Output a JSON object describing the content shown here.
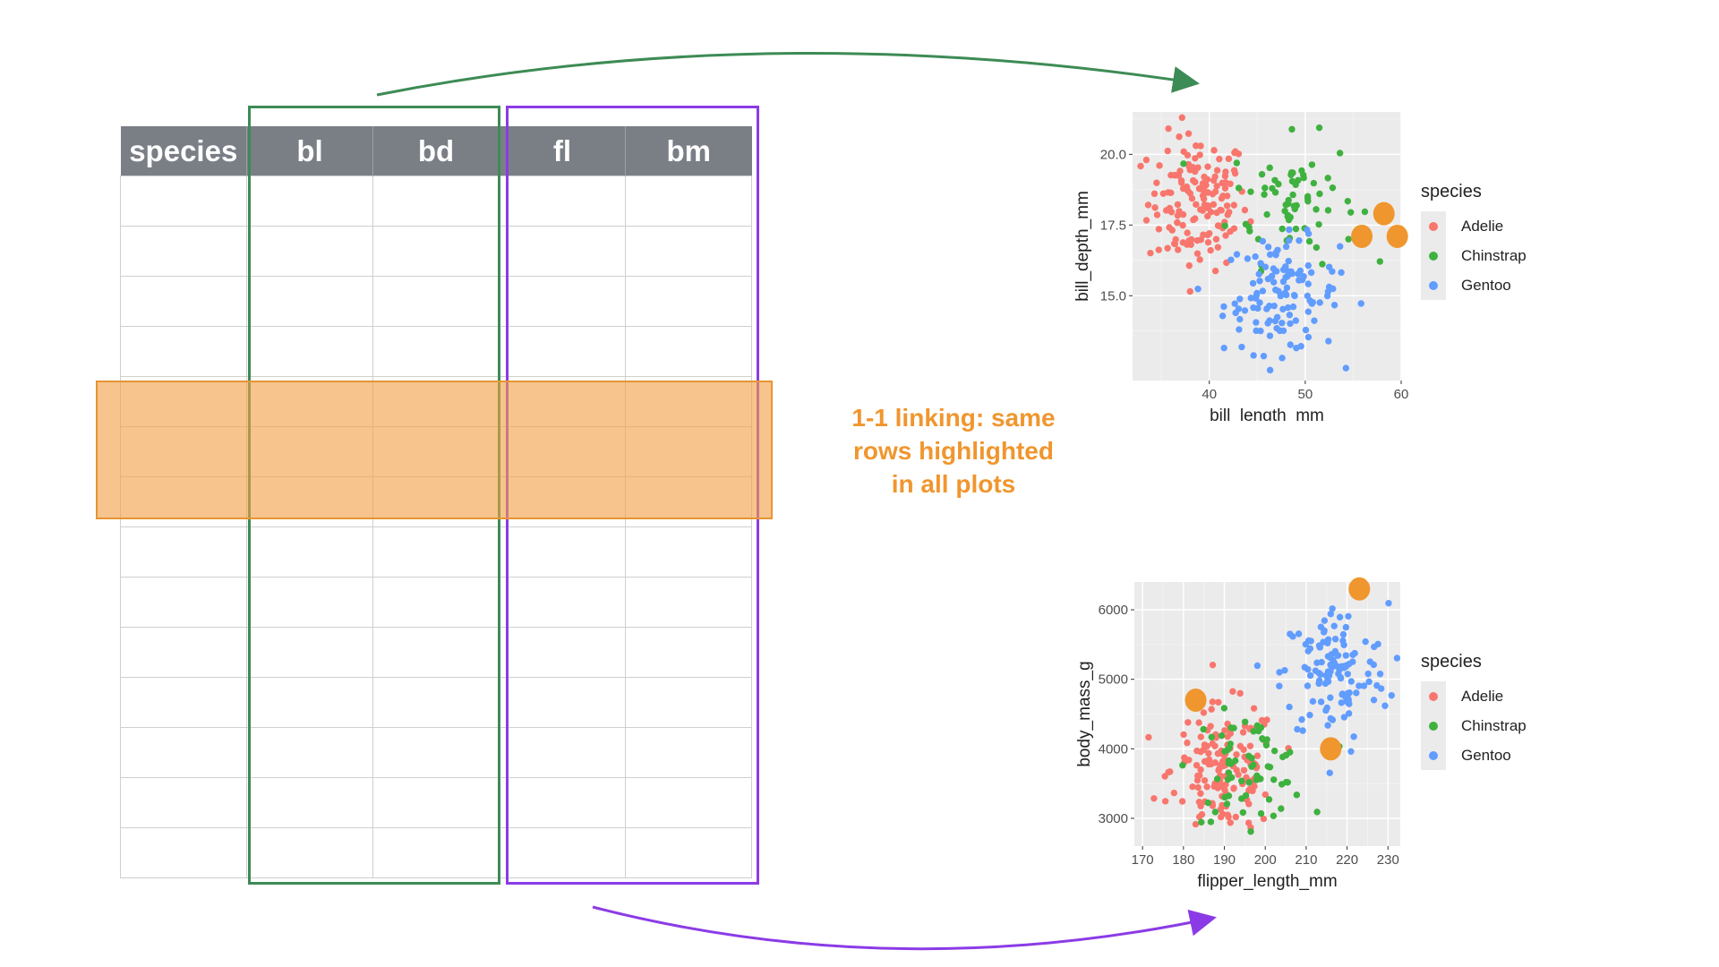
{
  "table": {
    "headers": [
      "species",
      "bl",
      "bd",
      "fl",
      "bm"
    ],
    "row_count": 14,
    "highlighted_rows": [
      5,
      6,
      7
    ]
  },
  "caption": [
    "1-1 linking: same",
    "rows highlighted",
    "in all plots"
  ],
  "colors": {
    "header_bg": "#7a7f86",
    "green_box": "#3d8b55",
    "purple_box": "#8b3be6",
    "highlight": "#f0a046",
    "caption": "#f0962e",
    "Adelie": "#f8766d",
    "Chinstrap": "#3fb13f",
    "Gentoo": "#619cff"
  },
  "legend": {
    "title": "species",
    "items": [
      "Adelie",
      "Chinstrap",
      "Gentoo"
    ]
  },
  "chart_data": [
    {
      "type": "scatter",
      "xlabel": "bill_length_mm",
      "ylabel": "bill_depth_mm",
      "xlim": [
        32,
        60
      ],
      "ylim": [
        12,
        21.5
      ],
      "x_ticks": [
        40,
        50,
        60
      ],
      "y_ticks": [
        15.0,
        17.5,
        20.0
      ],
      "y_tick_labels": [
        "15.0",
        "17.5",
        "20.0"
      ],
      "grid": true,
      "legend_placement": "right",
      "series": [
        {
          "name": "Adelie",
          "center": [
            38.8,
            18.3
          ],
          "spread": [
            2.6,
            1.2
          ],
          "count": 150
        },
        {
          "name": "Chinstrap",
          "center": [
            48.8,
            18.4
          ],
          "spread": [
            3.3,
            1.1
          ],
          "count": 68
        },
        {
          "name": "Gentoo",
          "center": [
            47.5,
            15.0
          ],
          "spread": [
            3.0,
            1.0
          ],
          "count": 124
        }
      ],
      "highlighted": [
        [
          58.2,
          17.9
        ],
        [
          55.9,
          17.1
        ],
        [
          59.6,
          17.1
        ]
      ]
    },
    {
      "type": "scatter",
      "xlabel": "flipper_length_mm",
      "ylabel": "body_mass_g",
      "xlim": [
        168,
        233
      ],
      "ylim": [
        2600,
        6400
      ],
      "x_ticks": [
        170,
        180,
        190,
        200,
        210,
        220,
        230
      ],
      "y_ticks": [
        3000,
        4000,
        5000,
        6000
      ],
      "grid": true,
      "legend_placement": "right",
      "series": [
        {
          "name": "Adelie",
          "center": [
            190,
            3700
          ],
          "spread": [
            6.5,
            460
          ],
          "count": 150
        },
        {
          "name": "Chinstrap",
          "center": [
            196,
            3730
          ],
          "spread": [
            7.0,
            380
          ],
          "count": 68
        },
        {
          "name": "Gentoo",
          "center": [
            217,
            5080
          ],
          "spread": [
            6.5,
            500
          ],
          "count": 124
        }
      ],
      "highlighted": [
        [
          183,
          4700
        ],
        [
          223,
          6300
        ],
        [
          216,
          4000
        ]
      ]
    }
  ]
}
